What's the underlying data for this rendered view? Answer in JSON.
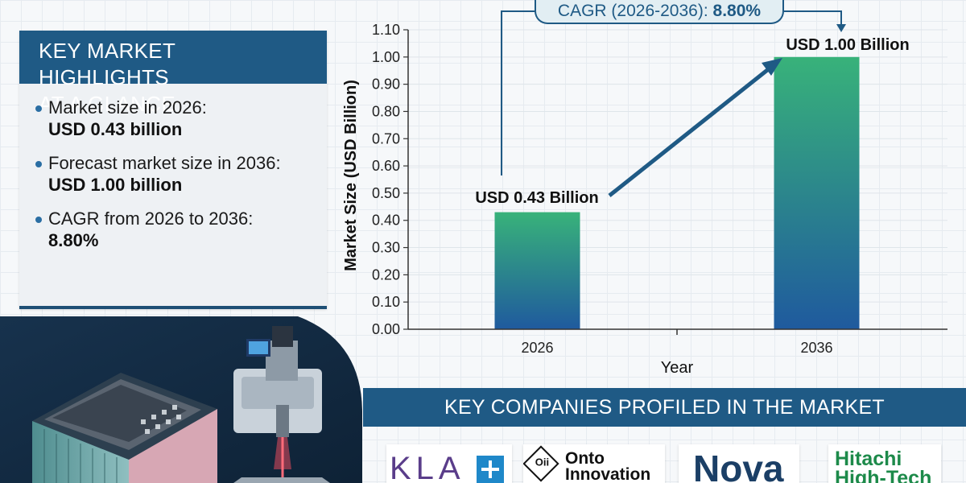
{
  "highlights": {
    "title_line1": "KEY MARKET HIGHLIGHTS",
    "title_line2": "AT A GLANCE",
    "items": [
      {
        "label": "Market size in 2026:",
        "value": "USD 0.43 billion"
      },
      {
        "label": "Forecast market size in 2036:",
        "value": "USD 1.00 billion"
      },
      {
        "label": "CAGR from 2026 to 2036:",
        "value": "8.80%"
      }
    ]
  },
  "chart_data": {
    "type": "bar",
    "categories": [
      "2026",
      "2036"
    ],
    "values": [
      0.43,
      1.0
    ],
    "bar_labels": [
      "USD 0.43 Billion",
      "USD 1.00 Billion"
    ],
    "xlabel": "Year",
    "ylabel": "Market Size (USD Billion)",
    "ylim": [
      0,
      1.1
    ],
    "yticks": [
      "0.00",
      "0.10",
      "0.20",
      "0.30",
      "0.40",
      "0.50",
      "0.60",
      "0.70",
      "0.80",
      "0.90",
      "1.00",
      "1.10"
    ],
    "cagr_label": "CAGR (2026-2036):",
    "cagr_value": "8.80%",
    "bar_colors": [
      "#38b27a",
      "#1f5a9e"
    ]
  },
  "companies": {
    "title": "KEY COMPANIES PROFILED IN THE MARKET",
    "logos": [
      {
        "name": "KLA",
        "icon": "plus-square-icon"
      },
      {
        "name_line1": "Onto",
        "name_line2": "Innovation",
        "icon": "onto-diamond-icon",
        "mark_text": "Oii"
      },
      {
        "name": "Nova"
      },
      {
        "name_line1": "Hitachi",
        "name_line2": "High-Tech"
      }
    ]
  }
}
